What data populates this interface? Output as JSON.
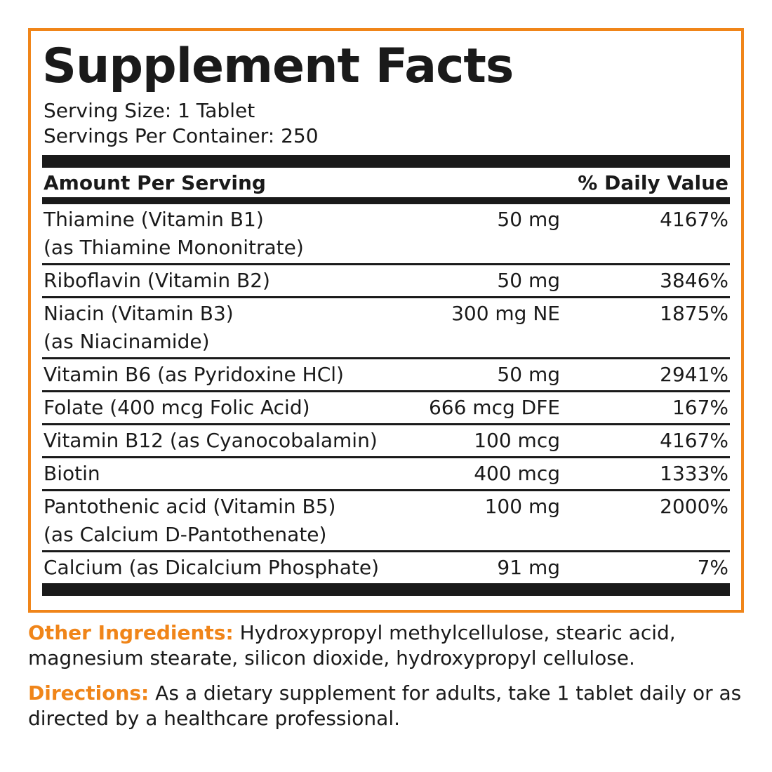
{
  "facts": {
    "title": "Supplement Facts",
    "serving_size": "Serving Size: 1 Tablet",
    "servings_per_container": "Servings Per Container: 250",
    "header": {
      "amount": "Amount Per Serving",
      "dv": "% Daily Value"
    },
    "rows": [
      {
        "name": [
          "Thiamine (Vitamin B1)",
          "(as Thiamine Mononitrate)"
        ],
        "amount": "50 mg",
        "dv": "4167%"
      },
      {
        "name": [
          "Riboflavin (Vitamin B2)"
        ],
        "amount": "50 mg",
        "dv": "3846%"
      },
      {
        "name": [
          "Niacin (Vitamin B3)",
          "(as Niacinamide)"
        ],
        "amount": "300 mg NE",
        "dv": "1875%"
      },
      {
        "name": [
          "Vitamin B6 (as Pyridoxine HCl)"
        ],
        "amount": "50 mg",
        "dv": "2941%"
      },
      {
        "name": [
          "Folate (400 mcg Folic Acid)"
        ],
        "amount": "666 mcg DFE",
        "dv": "167%"
      },
      {
        "name": [
          "Vitamin B12 (as Cyanocobalamin)"
        ],
        "amount": "100 mcg",
        "dv": "4167%"
      },
      {
        "name": [
          "Biotin"
        ],
        "amount": "400 mcg",
        "dv": "1333%"
      },
      {
        "name": [
          "Pantothenic acid (Vitamin B5)",
          "(as Calcium D-Pantothenate)"
        ],
        "amount": "100 mg",
        "dv": "2000%"
      },
      {
        "name": [
          "Calcium (as Dicalcium Phosphate)"
        ],
        "amount": "91 mg",
        "dv": "7%"
      }
    ]
  },
  "other_ingredients": {
    "label": "Other Ingredients:",
    "text": "Hydroxypropyl methylcellulose, stearic acid, magnesium stearate, silicon dioxide, hydroxypropyl cellulose."
  },
  "directions": {
    "label": "Directions:",
    "text": "As a dietary supplement for adults, take 1 tablet daily or as directed by a healthcare professional."
  }
}
